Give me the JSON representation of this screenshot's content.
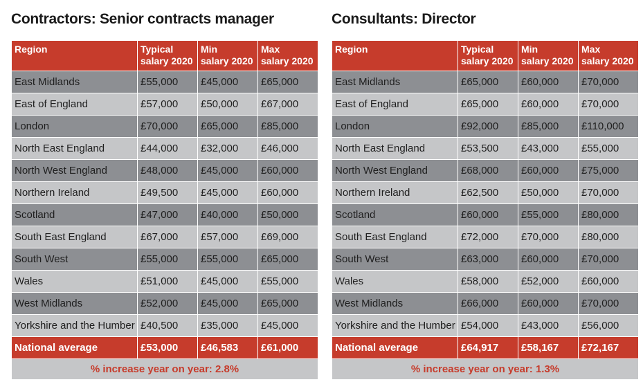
{
  "tables": [
    {
      "title": "Contractors: Senior contracts manager",
      "headers": {
        "region": "Region",
        "typical": [
          "Typical",
          "salary 2020"
        ],
        "min": [
          "Min",
          "salary 2020"
        ],
        "max": [
          "Max",
          "salary 2020"
        ]
      },
      "rows": [
        [
          "East Midlands",
          "£55,000",
          "£45,000",
          "£65,000"
        ],
        [
          "East of England",
          "£57,000",
          "£50,000",
          "£67,000"
        ],
        [
          "London",
          "£70,000",
          "£65,000",
          "£85,000"
        ],
        [
          "North East England",
          "£44,000",
          "£32,000",
          "£46,000"
        ],
        [
          "North West England",
          "£48,000",
          "£45,000",
          "£60,000"
        ],
        [
          "Northern Ireland",
          "£49,500",
          "£45,000",
          "£60,000"
        ],
        [
          "Scotland",
          "£47,000",
          "£40,000",
          "£50,000"
        ],
        [
          "South East England",
          "£67,000",
          "£57,000",
          "£69,000"
        ],
        [
          "South West",
          "£55,000",
          "£55,000",
          "£65,000"
        ],
        [
          "Wales",
          "£51,000",
          "£45,000",
          "£55,000"
        ],
        [
          "West Midlands",
          "£52,000",
          "£45,000",
          "£65,000"
        ],
        [
          "Yorkshire and the Humber",
          "£40,500",
          "£35,000",
          "£45,000"
        ]
      ],
      "average": [
        "National average",
        "£53,000",
        "£46,583",
        "£61,000"
      ],
      "footer": "% increase year on year: 2.8%"
    },
    {
      "title": "Consultants: Director",
      "headers": {
        "region": "Region",
        "typical": [
          "Typical",
          "salary 2020"
        ],
        "min": [
          "Min",
          "salary 2020"
        ],
        "max": [
          "Max",
          "salary 2020"
        ]
      },
      "rows": [
        [
          "East Midlands",
          "£65,000",
          "£60,000",
          "£70,000"
        ],
        [
          "East of England",
          "£65,000",
          "£60,000",
          "£70,000"
        ],
        [
          "London",
          "£92,000",
          "£85,000",
          "£110,000"
        ],
        [
          "North East England",
          "£53,500",
          "£43,000",
          "£55,000"
        ],
        [
          "North West England",
          "£68,000",
          "£60,000",
          "£75,000"
        ],
        [
          "Northern Ireland",
          "£62,500",
          "£50,000",
          "£70,000"
        ],
        [
          "Scotland",
          "£60,000",
          "£55,000",
          "£80,000"
        ],
        [
          "South East England",
          "£72,000",
          "£70,000",
          "£80,000"
        ],
        [
          "South West",
          "£63,000",
          "£60,000",
          "£70,000"
        ],
        [
          "Wales",
          "£58,000",
          "£52,000",
          "£60,000"
        ],
        [
          "West Midlands",
          "£66,000",
          "£60,000",
          "£70,000"
        ],
        [
          "Yorkshire and the Humber",
          "£54,000",
          "£43,000",
          "£56,000"
        ]
      ],
      "average": [
        "National average",
        "£64,917",
        "£58,167",
        "£72,167"
      ],
      "footer": "% increase year on year: 1.3%"
    }
  ],
  "colors": {
    "header_red": "#c63c2c",
    "row_dark": "#8d8f93",
    "row_light": "#c5c6c8"
  }
}
